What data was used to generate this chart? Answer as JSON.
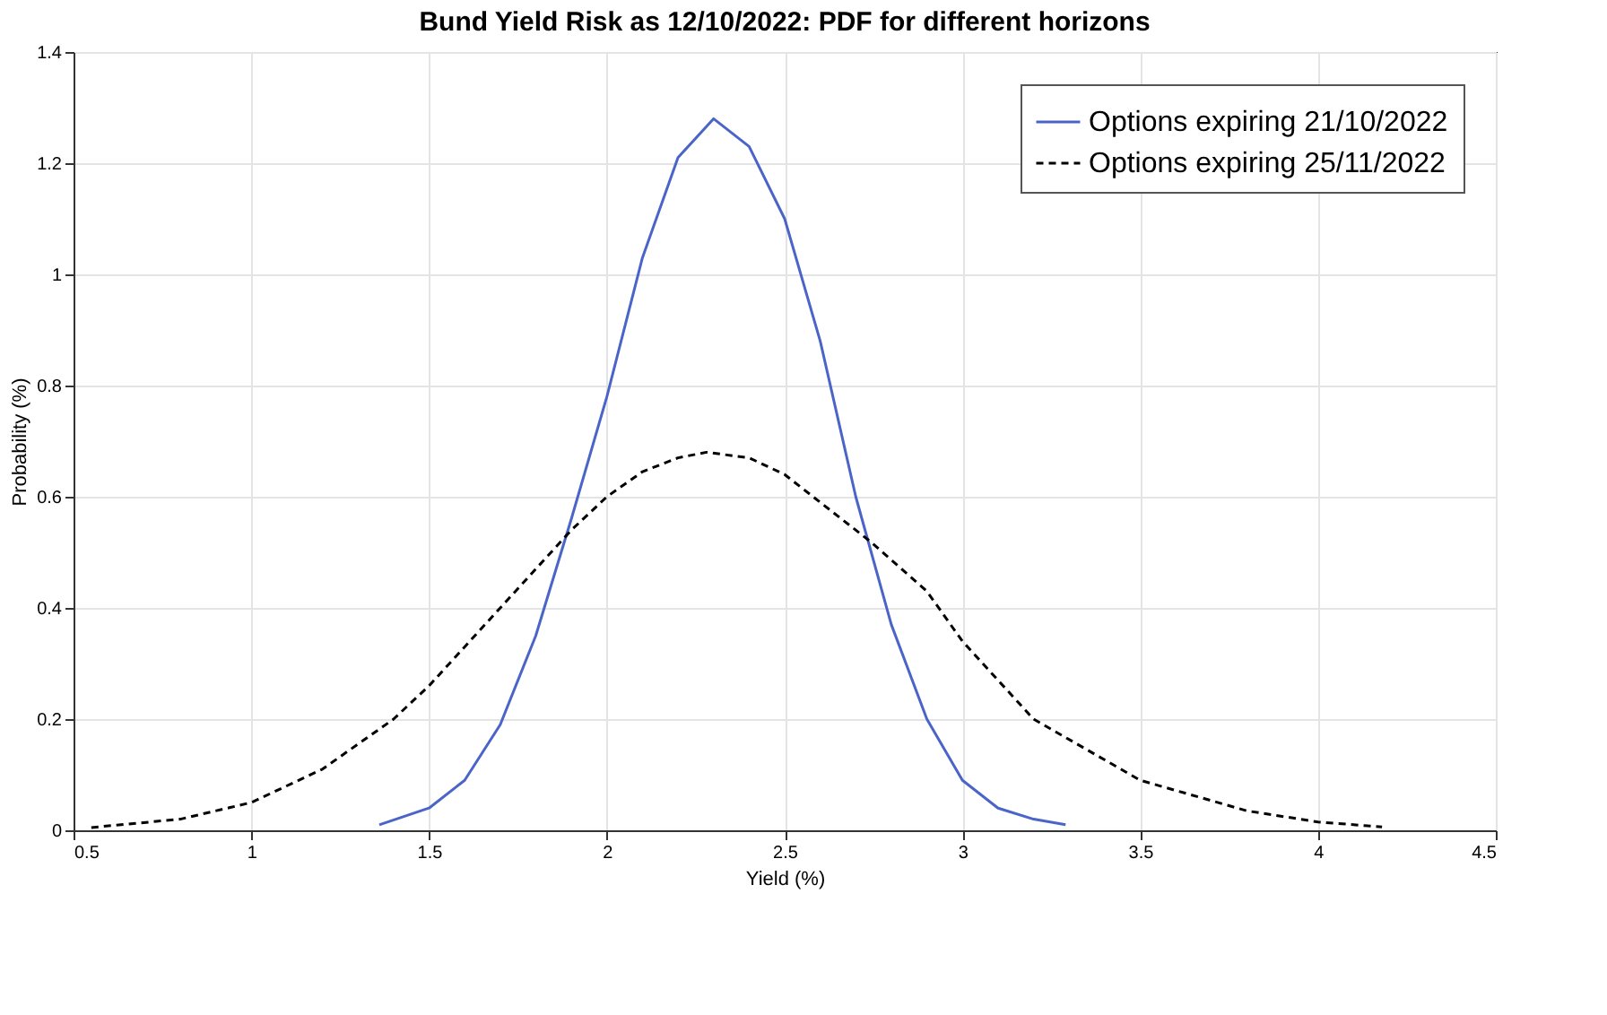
{
  "chart_data": {
    "type": "line",
    "title": "Bund Yield Risk as 12/10/2022: PDF for different horizons",
    "xlabel": "Yield (%)",
    "ylabel": "Probability (%)",
    "xlim": [
      0.5,
      4.5
    ],
    "xticks": [
      0.5,
      1,
      1.5,
      2,
      2.5,
      3,
      3.5,
      4,
      4.5
    ],
    "ylim": [
      0,
      1.4
    ],
    "yticks": [
      0,
      0.2,
      0.4,
      0.6,
      0.8,
      1,
      1.2,
      1.4
    ],
    "grid": true,
    "legend": "top right",
    "marker": "none",
    "series": [
      {
        "name": "Options expiring 21/10/2022",
        "color": "#4a64c8",
        "line_style": "solid",
        "x": [
          1.36,
          1.5,
          1.6,
          1.7,
          1.8,
          1.9,
          2.0,
          2.1,
          2.2,
          2.3,
          2.4,
          2.5,
          2.6,
          2.7,
          2.8,
          2.9,
          3.0,
          3.1,
          3.2,
          3.29
        ],
        "values": [
          0.01,
          0.04,
          0.09,
          0.19,
          0.35,
          0.56,
          0.78,
          1.03,
          1.21,
          1.28,
          1.23,
          1.1,
          0.88,
          0.6,
          0.37,
          0.2,
          0.09,
          0.04,
          0.02,
          0.01
        ]
      },
      {
        "name": "Options expiring 25/11/2022",
        "color": "#000000",
        "line_style": "dashed",
        "x": [
          0.55,
          0.8,
          1.0,
          1.2,
          1.4,
          1.5,
          1.6,
          1.8,
          1.9,
          2.0,
          2.1,
          2.2,
          2.28,
          2.4,
          2.5,
          2.6,
          2.74,
          2.9,
          3.0,
          3.2,
          3.5,
          3.8,
          4.0,
          4.18
        ],
        "values": [
          0.005,
          0.02,
          0.05,
          0.11,
          0.2,
          0.26,
          0.33,
          0.47,
          0.54,
          0.6,
          0.645,
          0.67,
          0.68,
          0.67,
          0.64,
          0.59,
          0.52,
          0.43,
          0.34,
          0.2,
          0.09,
          0.035,
          0.015,
          0.006
        ]
      }
    ]
  }
}
